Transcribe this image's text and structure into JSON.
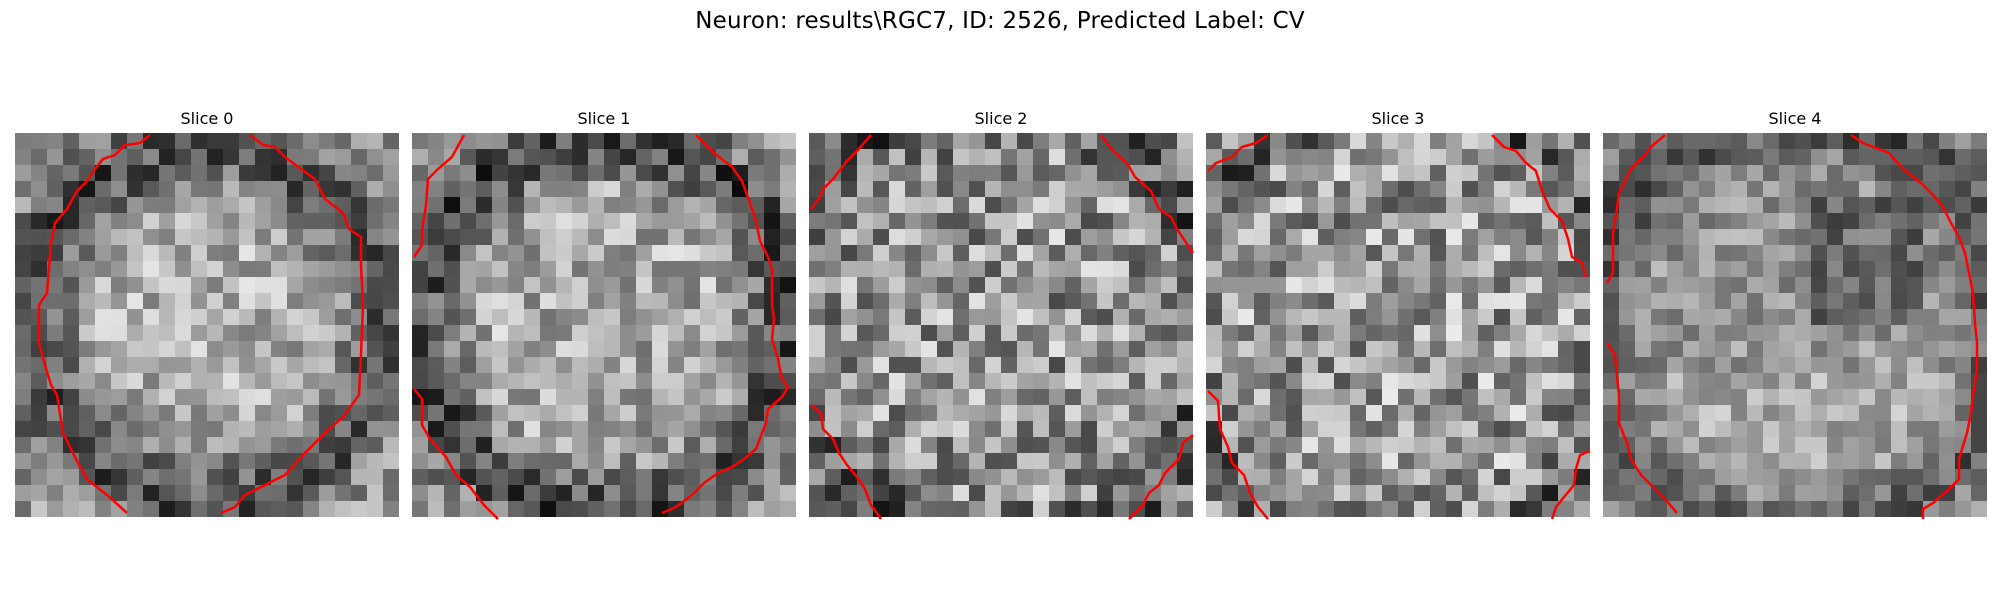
{
  "title": "Neuron: results\\RGC7, ID: 2526, Predicted Label: CV",
  "contour_color": "#ff0000",
  "panels": [
    {
      "label": "Slice 0"
    },
    {
      "label": "Slice 1"
    },
    {
      "label": "Slice 2"
    },
    {
      "label": "Slice 3"
    },
    {
      "label": "Slice 4"
    }
  ]
}
